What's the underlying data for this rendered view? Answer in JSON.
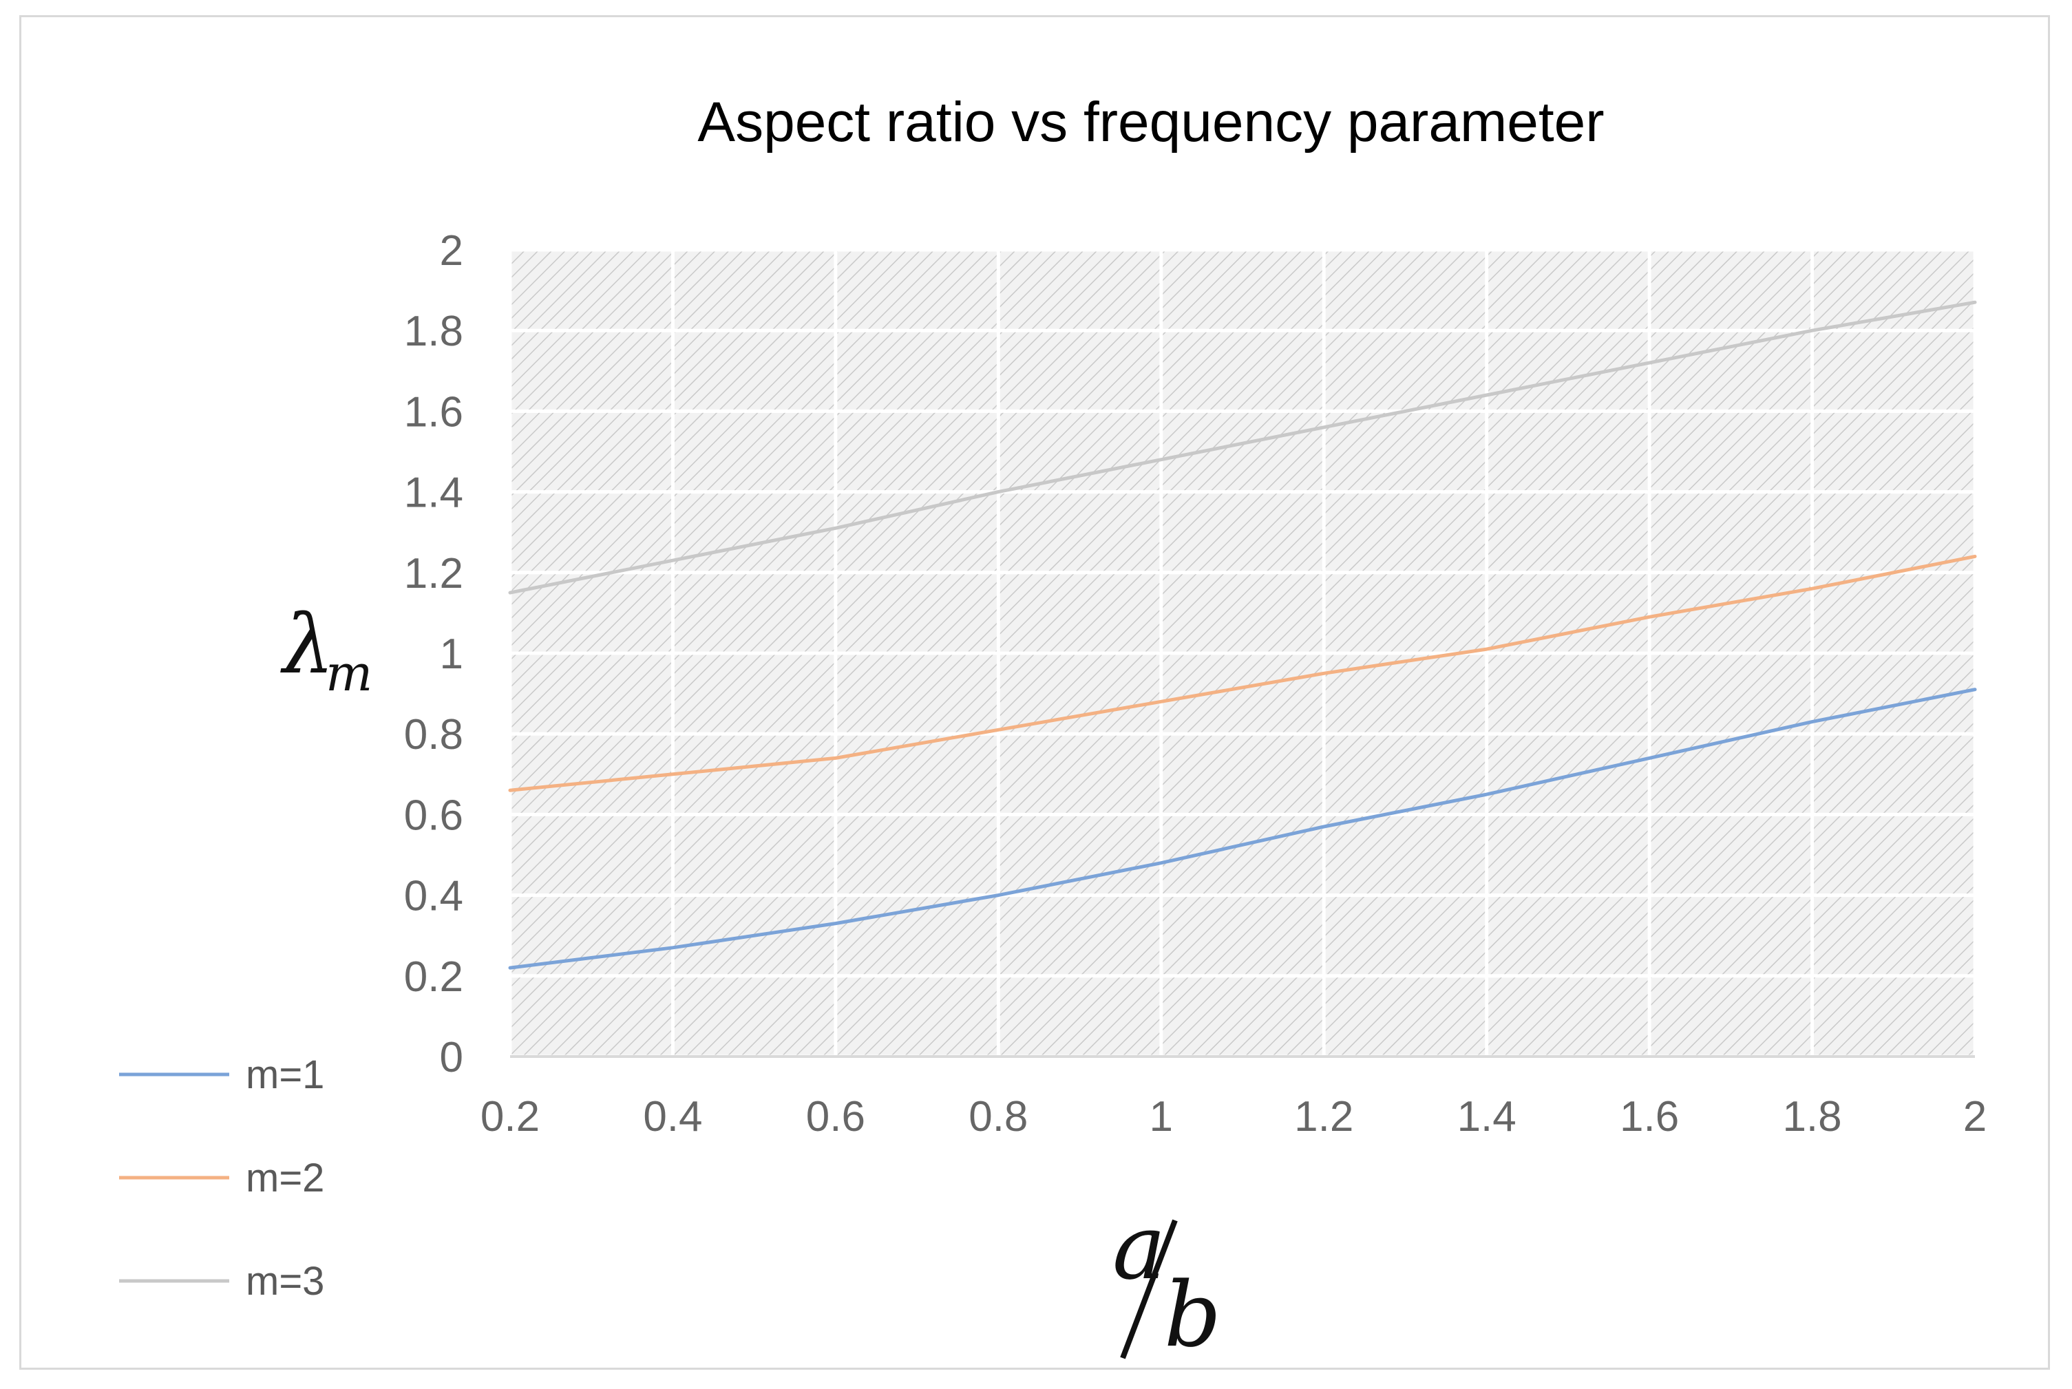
{
  "chart_data": {
    "type": "line",
    "title": "Aspect ratio vs frequency parameter",
    "xlabel": {
      "numerator": "a",
      "denominator": "b"
    },
    "ylabel": {
      "symbol": "λ",
      "subscript": "m"
    },
    "x": [
      0.2,
      0.4,
      0.6,
      0.8,
      1.0,
      1.2,
      1.4,
      1.6,
      1.8,
      2.0
    ],
    "xlim": [
      0.2,
      2
    ],
    "ylim": [
      0,
      2
    ],
    "xticks": [
      "0.2",
      "0.4",
      "0.6",
      "0.8",
      "1",
      "1.2",
      "1.4",
      "1.6",
      "1.8",
      "2"
    ],
    "yticks": [
      "0",
      "0.2",
      "0.4",
      "0.6",
      "0.8",
      "1",
      "1.2",
      "1.4",
      "1.6",
      "1.8",
      "2"
    ],
    "grid": true,
    "legend_position": "left",
    "series": [
      {
        "name": "m=1",
        "color": "#7ba3d8",
        "values": [
          0.22,
          0.27,
          0.33,
          0.4,
          0.48,
          0.57,
          0.65,
          0.74,
          0.83,
          0.91
        ]
      },
      {
        "name": "m=2",
        "color": "#f4b183",
        "values": [
          0.66,
          0.7,
          0.74,
          0.81,
          0.88,
          0.95,
          1.01,
          1.09,
          1.16,
          1.24
        ]
      },
      {
        "name": "m=3",
        "color": "#c8c8c8",
        "values": [
          1.15,
          1.23,
          1.31,
          1.4,
          1.48,
          1.56,
          1.64,
          1.72,
          1.8,
          1.87
        ]
      }
    ]
  }
}
